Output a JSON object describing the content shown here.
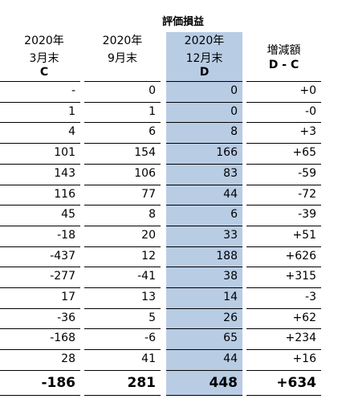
{
  "header": {
    "title": "評価損益",
    "columns": [
      {
        "lines": [
          "2020年",
          "3月末"
        ],
        "key": "C"
      },
      {
        "lines": [
          "2020年",
          "9月末"
        ]
      },
      {
        "lines": [
          "2020年",
          "12月末"
        ],
        "key": "D"
      },
      {
        "lines": [
          "増減額"
        ],
        "key": "D - C"
      }
    ]
  },
  "table": {
    "rows": [
      [
        "-",
        "0",
        "0",
        "+0"
      ],
      [
        "1",
        "1",
        "0",
        "-0"
      ],
      [
        "4",
        "6",
        "8",
        "+3"
      ],
      [
        "101",
        "154",
        "166",
        "+65"
      ],
      [
        "143",
        "106",
        "83",
        "-59"
      ],
      [
        "116",
        "77",
        "44",
        "-72"
      ],
      [
        "45",
        "8",
        "6",
        "-39"
      ],
      [
        "-18",
        "20",
        "33",
        "+51"
      ],
      [
        "-437",
        "12",
        "188",
        "+626"
      ],
      [
        "-277",
        "-41",
        "38",
        "+315"
      ],
      [
        "17",
        "13",
        "14",
        "-3"
      ],
      [
        "-36",
        "5",
        "26",
        "+62"
      ],
      [
        "-168",
        "-6",
        "65",
        "+234"
      ],
      [
        "28",
        "41",
        "44",
        "+16"
      ]
    ],
    "total": [
      "-186",
      "281",
      "448",
      "+634"
    ]
  }
}
